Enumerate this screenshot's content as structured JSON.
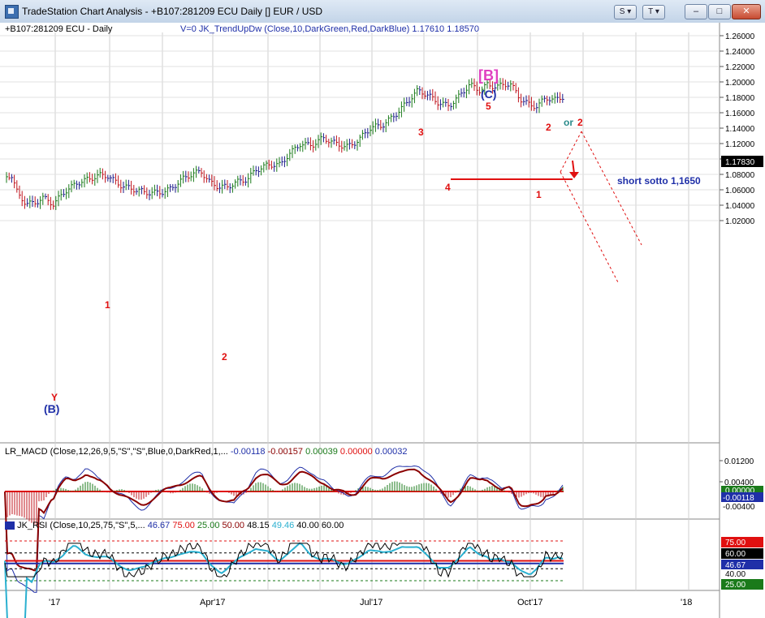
{
  "window": {
    "title": "TradeStation Chart Analysis - +B107:281209 ECU Daily [] EUR / USD",
    "btn_s": "S ▾",
    "btn_t": "T ▾",
    "btn_minimize": "–",
    "btn_maximize": "□",
    "btn_close": "✕"
  },
  "price_panel": {
    "symbol_label": "+B107:281209 ECU - Daily",
    "study_label": "V=0  JK_TrendUpDw (Close,10,DarkGreen,Red,DarkBlue)   1.17610  1.18570",
    "last_price_tag": "1.17830",
    "axis_ticks": [
      "1.26000",
      "1.24000",
      "1.22000",
      "1.20000",
      "1.18000",
      "1.16000",
      "1.14000",
      "1.12000",
      "1.10000",
      "1.08000",
      "1.06000",
      "1.04000",
      "1.02000"
    ],
    "annotations": {
      "wave_B_bracket": "[B]",
      "wave_C": "(C)",
      "wave_5": "5",
      "wave_3": "3",
      "wave_4": "4",
      "wave_2_top": "2",
      "wave_or": "or",
      "wave_2_alt": "2",
      "wave_1_right": "1",
      "wave_1_left": "1",
      "wave_2_left": "2",
      "wave_Y": "Y",
      "wave_B_paren": "(B)",
      "short_note": "short sotto 1,1650"
    },
    "colors": {
      "up_bar": "#1a7a1a",
      "down_bar": "#c0141d",
      "neutral_bar": "#1a1a8a",
      "wave_red": "#e01010",
      "wave_blue": "#1f2fa8",
      "wave_magenta": "#e040c0"
    }
  },
  "macd_panel": {
    "label_prefix": "LR_MACD (Close,12,26,9,5,\"S\",\"S\",Blue,0,DarkRed,1,...",
    "v1": "-0.00118",
    "v2": "-0.00157",
    "v3": "0.00039",
    "v4": "0.00000",
    "v5": "0.00032",
    "axis_ticks": [
      "0.01200",
      "0.00400"
    ],
    "tag_top": "0.00000",
    "tag_value": "-0.00118",
    "tag_bottom": "-0.00400"
  },
  "rsi_panel": {
    "label_prefix": "JK_RSI (Close,10,25,75,\"S\",5,...",
    "v1": "46.67",
    "v2": "75.00",
    "v3": "25.00",
    "v4": "50.00",
    "v5": "48.15",
    "v6": "49.46",
    "v7": "40.00",
    "v8": "60.00",
    "tag_75": "75.00",
    "tag_60": "60.00",
    "tag_value": "46.67",
    "tag_40": "40.00",
    "tag_25": "25.00"
  },
  "time_axis": [
    "'17",
    "Apr'17",
    "Jul'17",
    "Oct'17",
    "'18"
  ]
}
